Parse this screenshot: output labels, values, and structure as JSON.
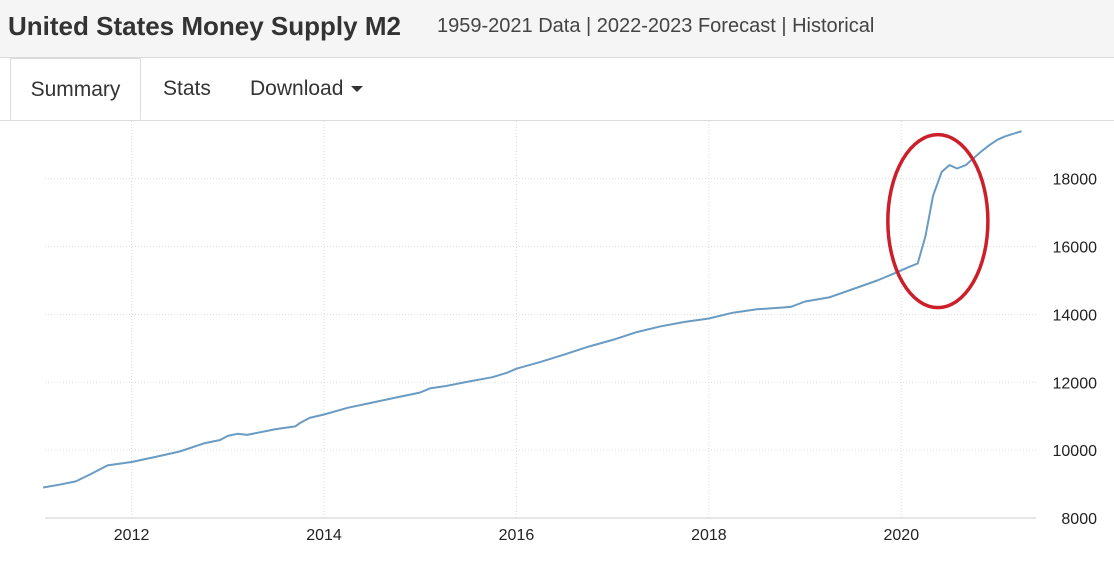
{
  "header": {
    "title": "United States Money Supply M2",
    "subtitle": "1959-2021 Data | 2022-2023 Forecast | Historical"
  },
  "tabs": [
    {
      "label": "Summary",
      "active": true
    },
    {
      "label": "Stats",
      "active": false
    },
    {
      "label": "Download",
      "active": false
    }
  ],
  "colors": {
    "line": "#6a9bc3",
    "grid": "#dddddd",
    "highlight": "#cc1f2a"
  },
  "chart_data": {
    "type": "line",
    "title": "United States Money Supply M2",
    "xlabel": "",
    "ylabel": "",
    "xlim": [
      2011.1,
      2021.4
    ],
    "ylim": [
      8000,
      19700
    ],
    "x_ticks": [
      2012,
      2014,
      2016,
      2018,
      2020
    ],
    "x_tick_labels": [
      "2012",
      "2014",
      "2016",
      "2018",
      "2020"
    ],
    "y_ticks": [
      8000,
      10000,
      12000,
      14000,
      16000,
      18000
    ],
    "y_tick_labels": [
      "8000",
      "10000",
      "12000",
      "14000",
      "16000",
      "18000"
    ],
    "y_axis_position": "right",
    "grid": true,
    "series": [
      {
        "name": "Money Supply M2",
        "x": [
          2011.08,
          2011.25,
          2011.42,
          2011.58,
          2011.75,
          2012.0,
          2012.25,
          2012.5,
          2012.75,
          2012.92,
          2013.0,
          2013.1,
          2013.2,
          2013.5,
          2013.7,
          2013.75,
          2013.85,
          2014.0,
          2014.25,
          2014.5,
          2014.75,
          2015.0,
          2015.1,
          2015.25,
          2015.5,
          2015.75,
          2015.9,
          2016.0,
          2016.25,
          2016.5,
          2016.75,
          2017.0,
          2017.25,
          2017.5,
          2017.75,
          2018.0,
          2018.25,
          2018.5,
          2018.75,
          2018.85,
          2019.0,
          2019.25,
          2019.5,
          2019.75,
          2019.92,
          2020.0,
          2020.08,
          2020.17,
          2020.25,
          2020.33,
          2020.42,
          2020.5,
          2020.58,
          2020.67,
          2020.75,
          2020.83,
          2020.92,
          2021.0,
          2021.08,
          2021.25
        ],
        "values": [
          8900,
          8980,
          9080,
          9300,
          9550,
          9650,
          9800,
          9960,
          10200,
          10300,
          10420,
          10480,
          10450,
          10620,
          10700,
          10800,
          10950,
          11050,
          11250,
          11400,
          11550,
          11700,
          11820,
          11880,
          12020,
          12150,
          12280,
          12400,
          12600,
          12820,
          13050,
          13250,
          13480,
          13650,
          13780,
          13880,
          14050,
          14150,
          14200,
          14220,
          14380,
          14500,
          14750,
          15000,
          15200,
          15300,
          15400,
          15500,
          16300,
          17500,
          18200,
          18400,
          18300,
          18400,
          18600,
          18800,
          19000,
          19150,
          19250,
          19400
        ]
      }
    ],
    "annotations": [
      {
        "type": "ellipse",
        "label": "",
        "x_center": 2020.38,
        "y_center": 16750,
        "x_radius": 0.52,
        "y_radius": 2550
      }
    ]
  }
}
